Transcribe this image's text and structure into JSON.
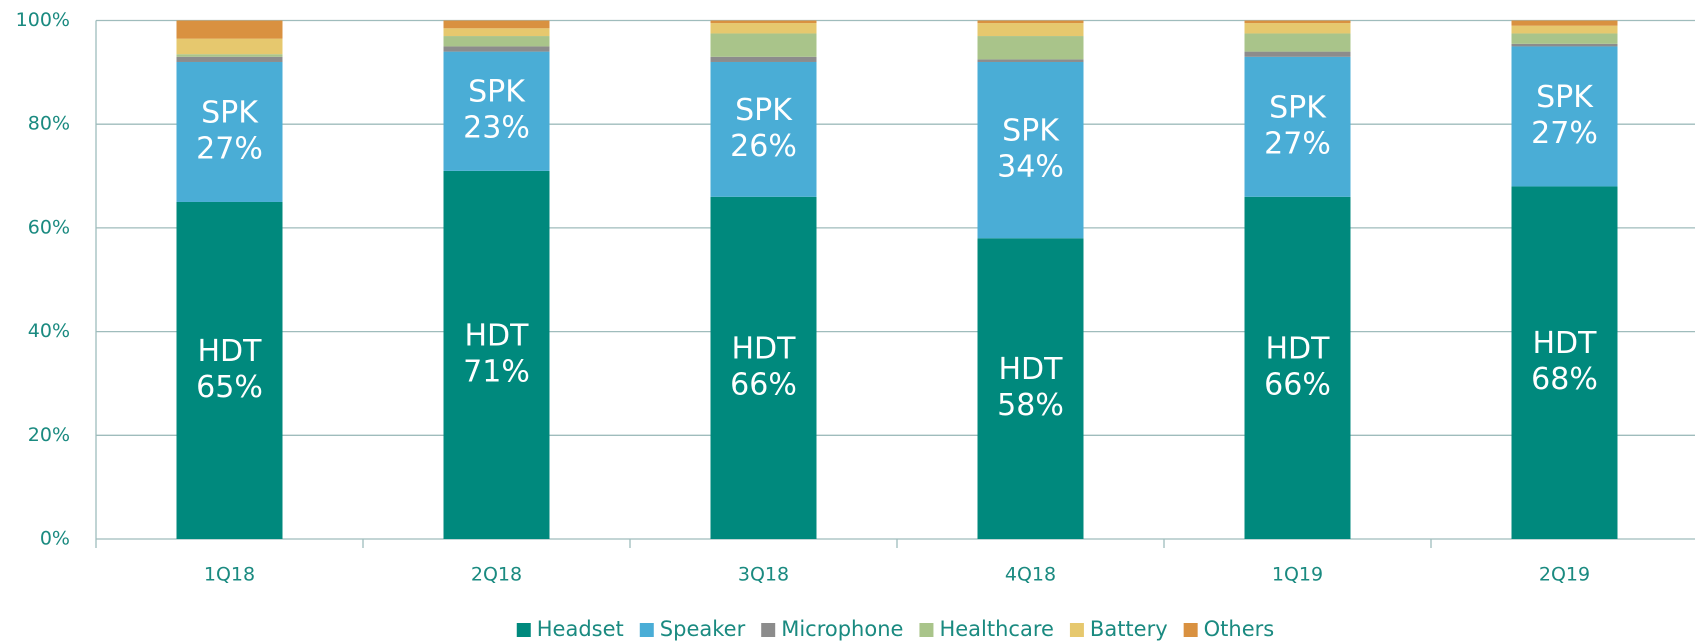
{
  "chart_data": {
    "type": "stacked_bar",
    "categories": [
      "1Q18",
      "2Q18",
      "3Q18",
      "4Q18",
      "1Q19",
      "2Q19"
    ],
    "series": [
      {
        "name": "Headset",
        "label": "HDT",
        "color": "#00897d",
        "values": [
          65,
          71,
          66,
          58,
          66,
          68
        ],
        "value_labels": [
          "65%",
          "71%",
          "66%",
          "58%",
          "66%",
          "68%"
        ]
      },
      {
        "name": "Speaker",
        "label": "SPK",
        "color": "#4aadd6",
        "values": [
          27,
          23,
          26,
          34,
          27,
          27
        ],
        "value_labels": [
          "27%",
          "23%",
          "26%",
          "34%",
          "27%",
          "27%"
        ]
      },
      {
        "name": "Microphone",
        "color": "#8c8c8c",
        "values": [
          1,
          1,
          1,
          0.5,
          1,
          0.5
        ]
      },
      {
        "name": "Healthcare",
        "color": "#a9c48a",
        "values": [
          0.5,
          2,
          4.5,
          4.5,
          3.5,
          2
        ]
      },
      {
        "name": "Battery",
        "color": "#e6c86e",
        "values": [
          3,
          1.5,
          2,
          2.5,
          2,
          1.5
        ]
      },
      {
        "name": "Others",
        "color": "#d99140",
        "values": [
          3.5,
          1.5,
          0.5,
          0.5,
          0.5,
          1
        ]
      }
    ],
    "ylim": [
      0,
      100
    ],
    "yticks": [
      {
        "value": 0,
        "label": "0%"
      },
      {
        "value": 20,
        "label": "20%"
      },
      {
        "value": 40,
        "label": "40%"
      },
      {
        "value": 60,
        "label": "60%"
      },
      {
        "value": 80,
        "label": "80%"
      },
      {
        "value": 100,
        "label": "100%"
      }
    ],
    "grid": true,
    "legend": "bottom"
  }
}
